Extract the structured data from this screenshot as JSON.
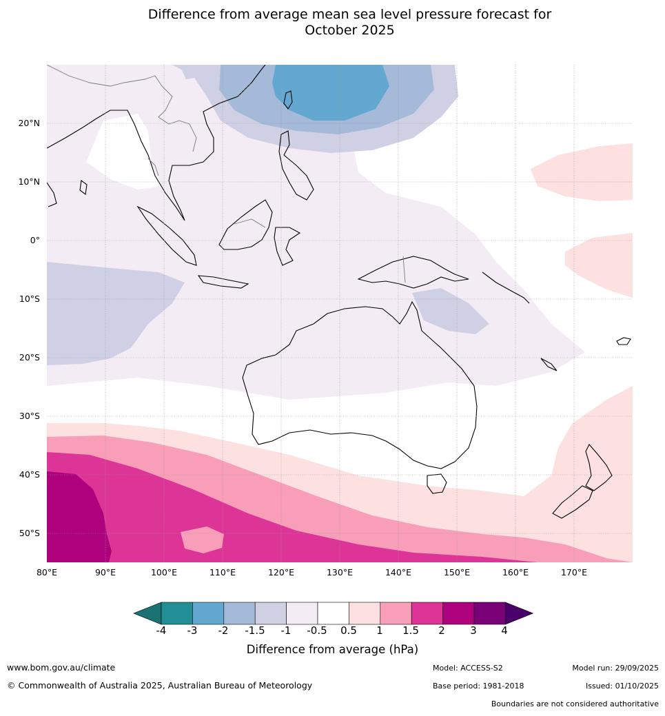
{
  "title": {
    "line1": "Difference from average mean sea level pressure forecast for",
    "line2": "October 2025"
  },
  "axes": {
    "lat_labels": [
      "20°N",
      "10°N",
      "0°",
      "10°S",
      "20°S",
      "30°S",
      "40°S",
      "50°S"
    ],
    "lon_labels": [
      "80°E",
      "90°E",
      "100°E",
      "110°E",
      "120°E",
      "130°E",
      "140°E",
      "150°E",
      "160°E",
      "170°E"
    ],
    "lat_values": [
      20,
      10,
      0,
      -10,
      -20,
      -30,
      -40,
      -50
    ],
    "lon_values": [
      80,
      90,
      100,
      110,
      120,
      130,
      140,
      150,
      160,
      170
    ],
    "lat_range": [
      -55,
      30
    ],
    "lon_range": [
      80,
      180
    ]
  },
  "colorbar": {
    "title": "Difference from average (hPa)",
    "ticks": [
      "-4",
      "-3",
      "-2",
      "-1.5",
      "-1",
      "-0.5",
      "0.5",
      "1",
      "1.5",
      "2",
      "3",
      "4"
    ],
    "colors": [
      "#1a7272",
      "#218f95",
      "#63a8d0",
      "#a5b9d9",
      "#d0d0e5",
      "#f3ecf5",
      "#ffffff",
      "#fde0e0",
      "#f89eb8",
      "#dd3497",
      "#ae017e",
      "#7a0177",
      "#49006a"
    ]
  },
  "regions": {
    "ne_negative_core": "-2 to -1.5",
    "ocean_negative": "-1 to -0.5",
    "southern_positive": "1 to 3",
    "tasman_positive": "0.5 to 1"
  },
  "footer": {
    "website": "www.bom.gov.au/climate",
    "copyright": "© Commonwealth of Australia 2025, Australian Bureau of Meteorology",
    "model": "Model: ACCESS-S2",
    "base_period": "Base period: 1981-2018",
    "model_run": "Model run: 29/09/2025",
    "issued": "Issued: 01/10/2025",
    "boundaries": "Boundaries are not considered authoritative"
  }
}
